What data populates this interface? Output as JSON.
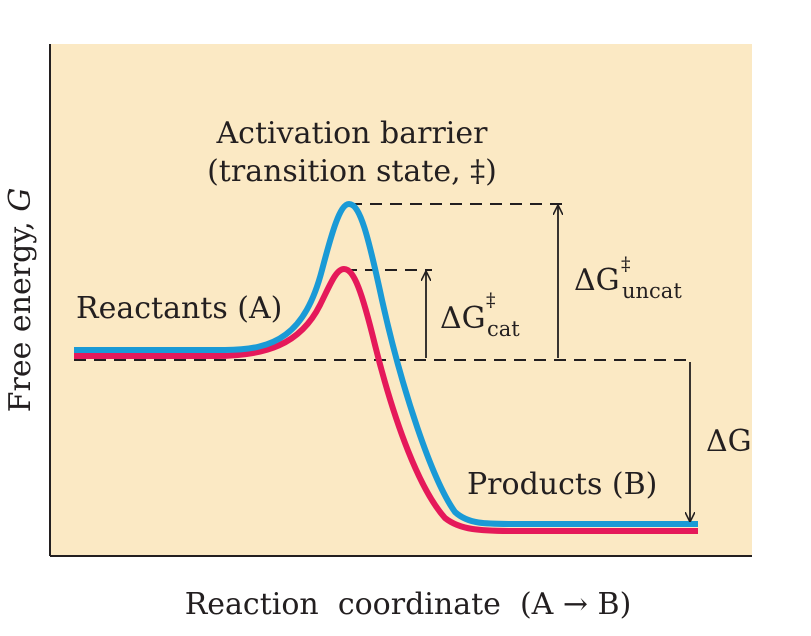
{
  "diagram": {
    "axes": {
      "y_label": "Free energy, ",
      "y_symbol": "G",
      "x_label": "Reaction  coordinate  (A → B)"
    },
    "labels": {
      "barrier_line1": "Activation barrier",
      "barrier_line2": "(transition state, ‡)",
      "reactants": "Reactants (A)",
      "products": "Products (B)",
      "dg_cat_main": "ΔG",
      "dg_cat_sup": "‡",
      "dg_cat_sub": "cat",
      "dg_uncat_main": "ΔG",
      "dg_uncat_sup": "‡",
      "dg_uncat_sub": "uncat",
      "dg": "ΔG"
    },
    "colors": {
      "background": "#fbe9c4",
      "uncatalyzed_curve": "#1a9ad6",
      "catalyzed_curve": "#e5195a",
      "ink": "#231f20"
    }
  }
}
